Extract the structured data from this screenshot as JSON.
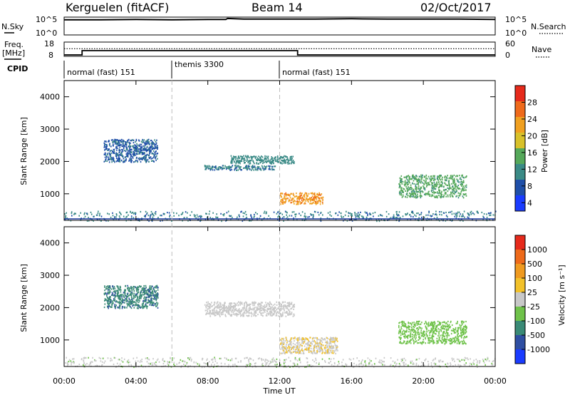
{
  "header": {
    "station": "Kerguelen (fitACF)",
    "beam": "Beam 14",
    "date": "02/Oct/2017"
  },
  "top_panel": {
    "left_label": "N.Sky",
    "right_label": "N.Search",
    "left_ticks": [
      "10^5",
      "10^0"
    ],
    "right_ticks": [
      "10^5",
      "10^0"
    ]
  },
  "freq_panel": {
    "left_label_1": "Freq.",
    "left_label_2": "[MHz]",
    "left_ticks": [
      "18",
      "8"
    ],
    "right_label": "Nave",
    "right_ticks": [
      "60",
      "0"
    ]
  },
  "cpid": {
    "label": "CPID",
    "segments": [
      "normal (fast) 151",
      "themis 3300",
      "normal (fast) 151"
    ]
  },
  "x_axis": {
    "label": "Time UT",
    "ticks": [
      "00:00",
      "04:00",
      "08:00",
      "12:00",
      "16:00",
      "20:00",
      "00:00"
    ]
  },
  "y_axis": {
    "label": "Slant Range [km]",
    "ticks": [
      "1000",
      "2000",
      "3000",
      "4000"
    ]
  },
  "power_scale": {
    "label": "Power [dB]",
    "ticks": [
      "4",
      "8",
      "12",
      "16",
      "20",
      "24",
      "28"
    ],
    "colors": [
      "#1a3cff",
      "#1f4fa8",
      "#3a8a86",
      "#55a85a",
      "#d8c12a",
      "#f0a020",
      "#ef6a1b",
      "#e62a1b"
    ]
  },
  "velocity_scale": {
    "label": "Velocity [m s⁻¹]",
    "ticks": [
      "1000",
      "500",
      "100",
      "25",
      "-25",
      "-100",
      "-500",
      "-1000"
    ],
    "colors": [
      "#1a3cff",
      "#2f4fa2",
      "#3a8a76",
      "#6fc24a",
      "#c8c8c8",
      "#f2c12a",
      "#ef9a20",
      "#ee6a1a",
      "#e62a1b"
    ]
  },
  "chart_data": [
    {
      "type": "line",
      "title": "N.Sky / N.Search",
      "xlim": [
        0,
        24
      ],
      "series": [
        {
          "name": "N.Sky",
          "x": [
            0,
            2,
            4,
            6,
            8,
            9,
            9.1,
            10,
            12,
            14,
            16,
            18,
            20,
            22,
            24
          ],
          "y": [
            4.6,
            4.6,
            4.7,
            4.6,
            4.7,
            4.7,
            5.0,
            4.8,
            4.8,
            4.8,
            4.9,
            4.8,
            4.8,
            4.8,
            4.7
          ]
        }
      ]
    },
    {
      "type": "line",
      "title": "Freq. / Nave",
      "xlim": [
        0,
        24
      ],
      "series": [
        {
          "name": "Freq.",
          "x": [
            0,
            1,
            1,
            13,
            13,
            24
          ],
          "y": [
            9,
            9,
            12,
            12,
            9,
            9
          ]
        },
        {
          "name": "Nave",
          "x": [
            0,
            24
          ],
          "y": [
            32,
            32
          ]
        }
      ]
    },
    {
      "type": "heatmap",
      "title": "Power [dB]",
      "xlabel": "Time UT",
      "ylabel": "Slant Range [km]",
      "xlim": [
        0,
        24
      ],
      "ylim": [
        180,
        4500
      ],
      "clim": [
        0,
        30
      ],
      "regions": [
        {
          "t0": 0,
          "t1": 24,
          "r0": 180,
          "r1": 480,
          "v": 8
        },
        {
          "t0": 2.2,
          "t1": 5.2,
          "r0": 2000,
          "r1": 2700,
          "v": 7
        },
        {
          "t0": 7.8,
          "t1": 11.8,
          "r0": 1750,
          "r1": 1900,
          "v": 8
        },
        {
          "t0": 9.2,
          "t1": 12.8,
          "r0": 1950,
          "r1": 2200,
          "v": 10
        },
        {
          "t0": 12.0,
          "t1": 14.4,
          "r0": 700,
          "r1": 1050,
          "v": 22
        },
        {
          "t0": 18.6,
          "t1": 22.4,
          "r0": 900,
          "r1": 1600,
          "v": 12
        }
      ]
    },
    {
      "type": "heatmap",
      "title": "Velocity [m s⁻¹]",
      "xlabel": "Time UT",
      "ylabel": "Slant Range [km]",
      "xlim": [
        0,
        24
      ],
      "ylim": [
        180,
        4500
      ],
      "clim": [
        -1000,
        1000
      ],
      "regions": [
        {
          "t0": 0,
          "t1": 24,
          "r0": 180,
          "r1": 480,
          "v": -60
        },
        {
          "t0": 2.2,
          "t1": 5.2,
          "r0": 2000,
          "r1": 2700,
          "v": -500
        },
        {
          "t0": 7.8,
          "t1": 12.8,
          "r0": 1750,
          "r1": 2200,
          "v": 0
        },
        {
          "t0": 12.0,
          "t1": 15.2,
          "r0": 600,
          "r1": 1100,
          "v": 90
        },
        {
          "t0": 18.6,
          "t1": 22.4,
          "r0": 900,
          "r1": 1600,
          "v": -200
        }
      ]
    }
  ]
}
